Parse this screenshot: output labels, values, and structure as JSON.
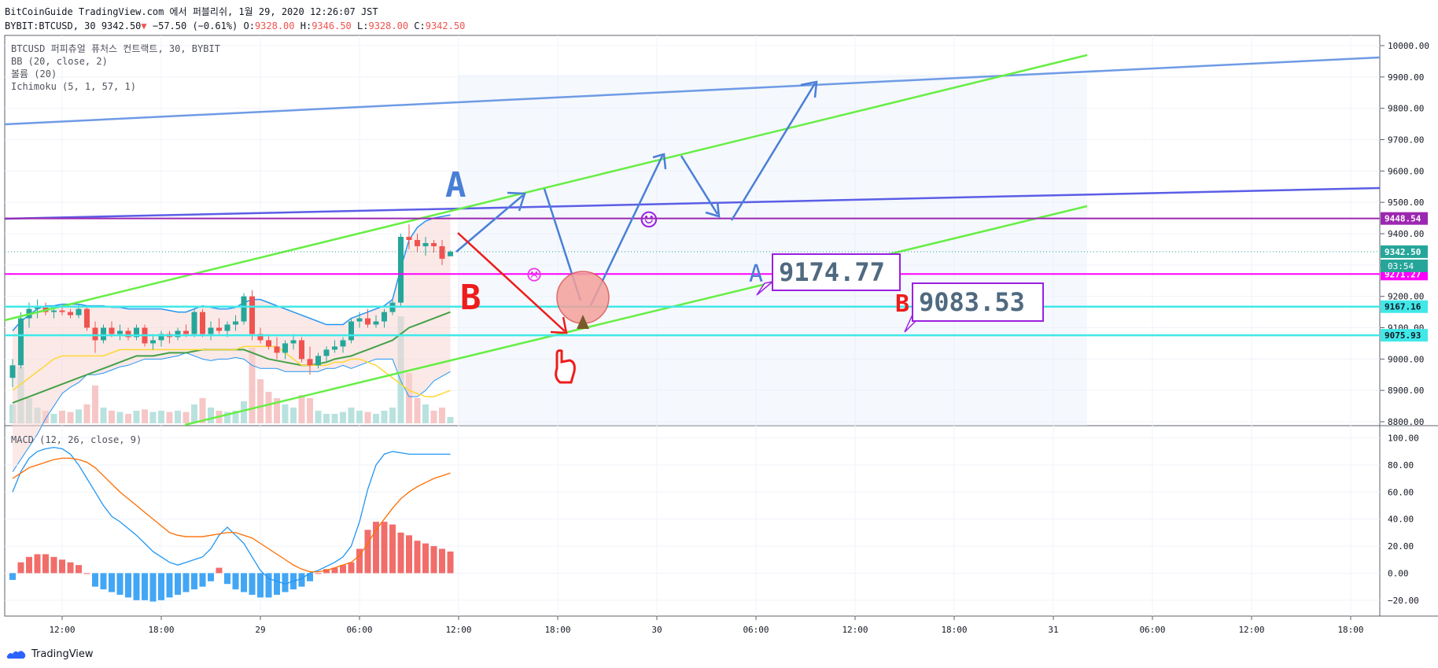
{
  "header": {
    "line1": "BitCoinGuide TradingView.com 에서 퍼블리쉬, 1월 29, 2020 12:26:07 JST",
    "symbol": "BYBIT:BTCUSD, 30",
    "last": "9342.50",
    "change_arrow": "▼",
    "change": "−57.50 (−0.61%)",
    "o_label": "O:",
    "o": "9328.00",
    "h_label": "H:",
    "h": "9346.50",
    "l_label": "L:",
    "l": "9328.00",
    "c_label": "C:",
    "c": "9342.50"
  },
  "legend": {
    "title": "BTCUSD 퍼피츄얼 퓨처스 컨트랙트, 30, BYBIT",
    "bb": "BB (20, close, 2)",
    "volume": "볼륨 (20)",
    "ichimoku": "Ichimoku (5, 1, 57, 1)",
    "macd": "MACD (12, 26, close, 9)"
  },
  "footer": {
    "brand": "TradingView"
  },
  "colors": {
    "bull": "#26a69a",
    "bear": "#ef5350",
    "macd": "#2196f3",
    "signal": "#ff6d00",
    "channel": "#66ee44",
    "trend_blue": "#6f9be6",
    "trend_indigo": "#5b5ee6",
    "magenta": "#ff00ff",
    "cyan": "#40e8e8",
    "purple_level": "#9c27b0"
  },
  "chart_data": [
    {
      "type": "candlestick",
      "title": "BTCUSD 퍼피츄얼 퓨처스 컨트랙트, 30, BYBIT",
      "ylim": [
        8800,
        10000
      ],
      "yticks": [
        8800,
        8900,
        9000,
        9100,
        9200,
        9300,
        9400,
        9500,
        9600,
        9700,
        9800,
        9900,
        10000
      ],
      "ytick_labels": [
        "8800.00",
        "8900.00",
        "9000.00",
        "9100.00",
        "9200.00",
        "9300.00",
        "9400.00",
        "9500.00",
        "9600.00",
        "9700.00",
        "9800.00",
        "9900.00",
        "10000.00"
      ],
      "xticks": [
        {
          "i": 6,
          "label": "12:00"
        },
        {
          "i": 18,
          "label": "18:00"
        },
        {
          "i": 30,
          "label": "29"
        },
        {
          "i": 42,
          "label": "06:00"
        },
        {
          "i": 54,
          "label": "12:00"
        },
        {
          "i": 66,
          "label": "18:00"
        },
        {
          "i": 78,
          "label": "30"
        },
        {
          "i": 90,
          "label": "06:00"
        },
        {
          "i": 102,
          "label": "12:00"
        },
        {
          "i": 114,
          "label": "18:00"
        },
        {
          "i": 126,
          "label": "31"
        },
        {
          "i": 138,
          "label": "06:00"
        },
        {
          "i": 150,
          "label": "12:00"
        },
        {
          "i": 162,
          "label": "18:00"
        }
      ],
      "candles": [
        [
          8940,
          9000,
          8910,
          8980
        ],
        [
          8980,
          9150,
          8970,
          9130
        ],
        [
          9130,
          9180,
          9100,
          9160
        ],
        [
          9160,
          9190,
          9130,
          9170
        ],
        [
          9170,
          9180,
          9140,
          9150
        ],
        [
          9150,
          9170,
          9130,
          9155
        ],
        [
          9155,
          9170,
          9140,
          9150
        ],
        [
          9150,
          9160,
          9130,
          9140
        ],
        [
          9140,
          9175,
          9130,
          9160
        ],
        [
          9160,
          9170,
          9090,
          9100
        ],
        [
          9100,
          9120,
          9020,
          9060
        ],
        [
          9060,
          9110,
          9050,
          9100
        ],
        [
          9100,
          9120,
          9070,
          9080
        ],
        [
          9080,
          9110,
          9060,
          9090
        ],
        [
          9090,
          9100,
          9060,
          9070
        ],
        [
          9070,
          9110,
          9060,
          9100
        ],
        [
          9100,
          9110,
          9040,
          9050
        ],
        [
          9050,
          9080,
          9030,
          9060
        ],
        [
          9060,
          9090,
          9040,
          9080
        ],
        [
          9080,
          9090,
          9050,
          9070
        ],
        [
          9070,
          9100,
          9060,
          9090
        ],
        [
          9090,
          9110,
          9070,
          9080
        ],
        [
          9080,
          9160,
          9070,
          9150
        ],
        [
          9150,
          9160,
          9070,
          9080
        ],
        [
          9080,
          9120,
          9060,
          9100
        ],
        [
          9100,
          9130,
          9080,
          9090
        ],
        [
          9090,
          9120,
          9070,
          9110
        ],
        [
          9110,
          9140,
          9090,
          9120
        ],
        [
          9120,
          9210,
          9110,
          9200
        ],
        [
          9200,
          9220,
          9060,
          9080
        ],
        [
          9080,
          9100,
          9050,
          9060
        ],
        [
          9060,
          9080,
          9030,
          9040
        ],
        [
          9040,
          9070,
          9000,
          9020
        ],
        [
          9020,
          9060,
          9000,
          9050
        ],
        [
          9050,
          9080,
          9030,
          9060
        ],
        [
          9060,
          9070,
          8990,
          9000
        ],
        [
          9000,
          9040,
          8950,
          8980
        ],
        [
          8980,
          9020,
          8970,
          9010
        ],
        [
          9010,
          9040,
          8990,
          9030
        ],
        [
          9030,
          9060,
          9020,
          9040
        ],
        [
          9040,
          9070,
          9020,
          9060
        ],
        [
          9060,
          9130,
          9050,
          9120
        ],
        [
          9120,
          9150,
          9100,
          9130
        ],
        [
          9130,
          9160,
          9100,
          9110
        ],
        [
          9110,
          9140,
          9100,
          9120
        ],
        [
          9120,
          9160,
          9100,
          9150
        ],
        [
          9150,
          9190,
          9140,
          9180
        ],
        [
          9180,
          9400,
          9170,
          9390
        ],
        [
          9390,
          9430,
          9350,
          9380
        ],
        [
          9380,
          9400,
          9340,
          9360
        ],
        [
          9360,
          9390,
          9330,
          9370
        ],
        [
          9370,
          9380,
          9340,
          9360
        ],
        [
          9360,
          9380,
          9300,
          9320
        ],
        [
          9328,
          9346.5,
          9328,
          9342.5
        ]
      ],
      "volume": [
        30,
        90,
        40,
        25,
        20,
        15,
        20,
        18,
        22,
        30,
        60,
        25,
        20,
        18,
        15,
        20,
        22,
        18,
        20,
        18,
        20,
        18,
        30,
        40,
        25,
        20,
        18,
        20,
        35,
        120,
        70,
        50,
        40,
        30,
        25,
        45,
        40,
        20,
        15,
        15,
        18,
        25,
        20,
        18,
        15,
        20,
        25,
        170,
        80,
        40,
        30,
        20,
        25,
        10
      ],
      "ylim_volume": [
        0,
        600
      ],
      "bb_mid": [
        8860,
        8900,
        8930,
        8960,
        8990,
        9010,
        9030,
        9040,
        9050,
        9060,
        9060,
        9060,
        9065,
        9070,
        9070,
        9075,
        9080,
        9080,
        9080,
        9080,
        9080,
        9085,
        9085,
        9085,
        9080,
        9080,
        9080,
        9085,
        9090,
        9085,
        9080,
        9075,
        9070,
        9060,
        9055,
        9050,
        9045,
        9040,
        9040,
        9040,
        9045,
        9050,
        9060,
        9070,
        9080,
        9085,
        9095,
        9110,
        9130,
        9150,
        9170,
        9190,
        9200,
        9210
      ],
      "bb_upper": [
        9090,
        9120,
        9140,
        9160,
        9170,
        9170,
        9175,
        9175,
        9175,
        9170,
        9170,
        9170,
        9165,
        9165,
        9160,
        9160,
        9160,
        9160,
        9160,
        9155,
        9150,
        9150,
        9160,
        9170,
        9165,
        9160,
        9160,
        9165,
        9180,
        9190,
        9190,
        9180,
        9170,
        9160,
        9150,
        9140,
        9130,
        9120,
        9110,
        9110,
        9110,
        9130,
        9140,
        9150,
        9160,
        9170,
        9190,
        9290,
        9380,
        9420,
        9440,
        9450,
        9455,
        9460
      ],
      "bb_lower": [
        8640,
        8680,
        8720,
        8760,
        8810,
        8850,
        8890,
        8910,
        8925,
        8950,
        8950,
        8955,
        8965,
        8975,
        8980,
        8990,
        9000,
        9000,
        9000,
        9005,
        9010,
        9020,
        9010,
        9000,
        8995,
        9000,
        9000,
        9005,
        9000,
        8980,
        8970,
        8970,
        8970,
        8960,
        8960,
        8960,
        8960,
        8960,
        8970,
        8970,
        8980,
        8970,
        8980,
        8990,
        9000,
        9000,
        9000,
        8930,
        8880,
        8880,
        8900,
        8930,
        8945,
        8960
      ],
      "tenkan": [
        8860,
        8870,
        8880,
        8890,
        8900,
        8910,
        8920,
        8930,
        8940,
        8950,
        8960,
        8970,
        8980,
        8990,
        9000,
        9010,
        9010,
        9010,
        9015,
        9020,
        9020,
        9020,
        9025,
        9030,
        9030,
        9030,
        9030,
        9030,
        9030,
        9020,
        9010,
        9000,
        8995,
        8990,
        8985,
        8980,
        8980,
        8985,
        8990,
        9000,
        9005,
        9010,
        9020,
        9030,
        9040,
        9050,
        9060,
        9080,
        9100,
        9110,
        9120,
        9130,
        9140,
        9150
      ],
      "kijun": [
        8900,
        8920,
        8940,
        8960,
        8980,
        9000,
        9010,
        9010,
        9010,
        9010,
        9010,
        9010,
        9020,
        9030,
        9030,
        9030,
        9030,
        9030,
        9030,
        9030,
        9030,
        9030,
        9030,
        9030,
        9030,
        9030,
        9030,
        9030,
        9040,
        9040,
        9040,
        9040,
        9040,
        9020,
        9000,
        8980,
        8980,
        8980,
        8980,
        8990,
        8990,
        9000,
        9000,
        8990,
        8980,
        8960,
        8940,
        8920,
        8900,
        8890,
        8880,
        8880,
        8890,
        8900
      ],
      "levels": [
        {
          "name": "purple",
          "value": 9448.54,
          "label": "9448.54"
        },
        {
          "name": "magenta",
          "value": 9271.27,
          "label": "9271.27"
        },
        {
          "name": "cyan1",
          "value": 9167.16,
          "label": "9167.16"
        },
        {
          "name": "cyan2",
          "value": 9075.93,
          "label": "9075.93"
        }
      ],
      "last_price": {
        "value": 9342.5,
        "label": "9342.50",
        "countdown": "03:54"
      },
      "annotations": {
        "label_a": "A",
        "label_b": "B",
        "box_a_value": "9174.77",
        "box_b_value": "9083.53",
        "smile": "☺",
        "frown": "☹"
      }
    },
    {
      "type": "line",
      "title": "MACD (12, 26, close, 9)",
      "ylim": [
        -30,
        105
      ],
      "yticks": [
        -20,
        0,
        20,
        40,
        60,
        80,
        100
      ],
      "ytick_labels": [
        "−20.00",
        "0.00",
        "20.00",
        "40.00",
        "60.00",
        "80.00",
        "100.00"
      ],
      "series": [
        {
          "name": "MACD",
          "values": [
            60,
            75,
            85,
            90,
            92,
            93,
            92,
            88,
            80,
            70,
            60,
            50,
            42,
            38,
            33,
            28,
            22,
            16,
            12,
            8,
            6,
            8,
            10,
            12,
            18,
            28,
            34,
            28,
            22,
            12,
            2,
            -4,
            -6,
            -8,
            -6,
            -4,
            0,
            2,
            5,
            8,
            12,
            20,
            38,
            62,
            80,
            88,
            90,
            89,
            88,
            88,
            88,
            88,
            88,
            88
          ]
        },
        {
          "name": "Signal",
          "values": [
            70,
            74,
            78,
            80,
            82,
            84,
            85,
            85,
            84,
            82,
            78,
            72,
            66,
            60,
            55,
            50,
            45,
            40,
            35,
            30,
            28,
            27,
            27,
            27,
            28,
            29,
            30,
            30,
            28,
            26,
            22,
            18,
            14,
            10,
            6,
            3,
            1,
            1,
            2,
            4,
            6,
            8,
            13,
            22,
            32,
            40,
            48,
            55,
            60,
            64,
            67,
            70,
            72,
            74
          ]
        },
        {
          "name": "Histogram",
          "values": [
            -5,
            8,
            12,
            14,
            14,
            12,
            10,
            8,
            6,
            0,
            -10,
            -12,
            -14,
            -16,
            -18,
            -20,
            -20,
            -21,
            -20,
            -18,
            -16,
            -14,
            -12,
            -10,
            -6,
            4,
            -8,
            -12,
            -14,
            -16,
            -18,
            -18,
            -16,
            -14,
            -12,
            -10,
            -6,
            0,
            3,
            4,
            6,
            8,
            18,
            32,
            38,
            38,
            36,
            30,
            28,
            24,
            22,
            20,
            18,
            16
          ]
        }
      ]
    }
  ]
}
